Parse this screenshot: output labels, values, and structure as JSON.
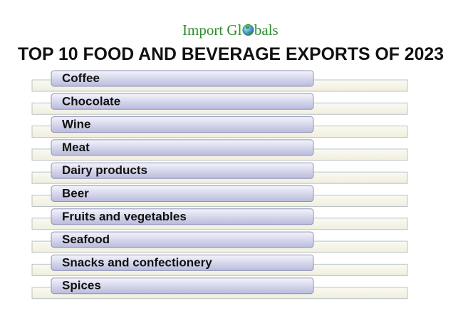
{
  "logo": {
    "before": "Import Gl",
    "after": "bals"
  },
  "title": "TOP 10 FOOD AND BEVERAGE EXPORTS OF 2023",
  "items": [
    "Coffee",
    "Chocolate",
    "Wine",
    "Meat",
    "Dairy products",
    "Beer",
    "Fruits and vegetables",
    "Seafood",
    "Snacks and confectionery",
    "Spices"
  ]
}
